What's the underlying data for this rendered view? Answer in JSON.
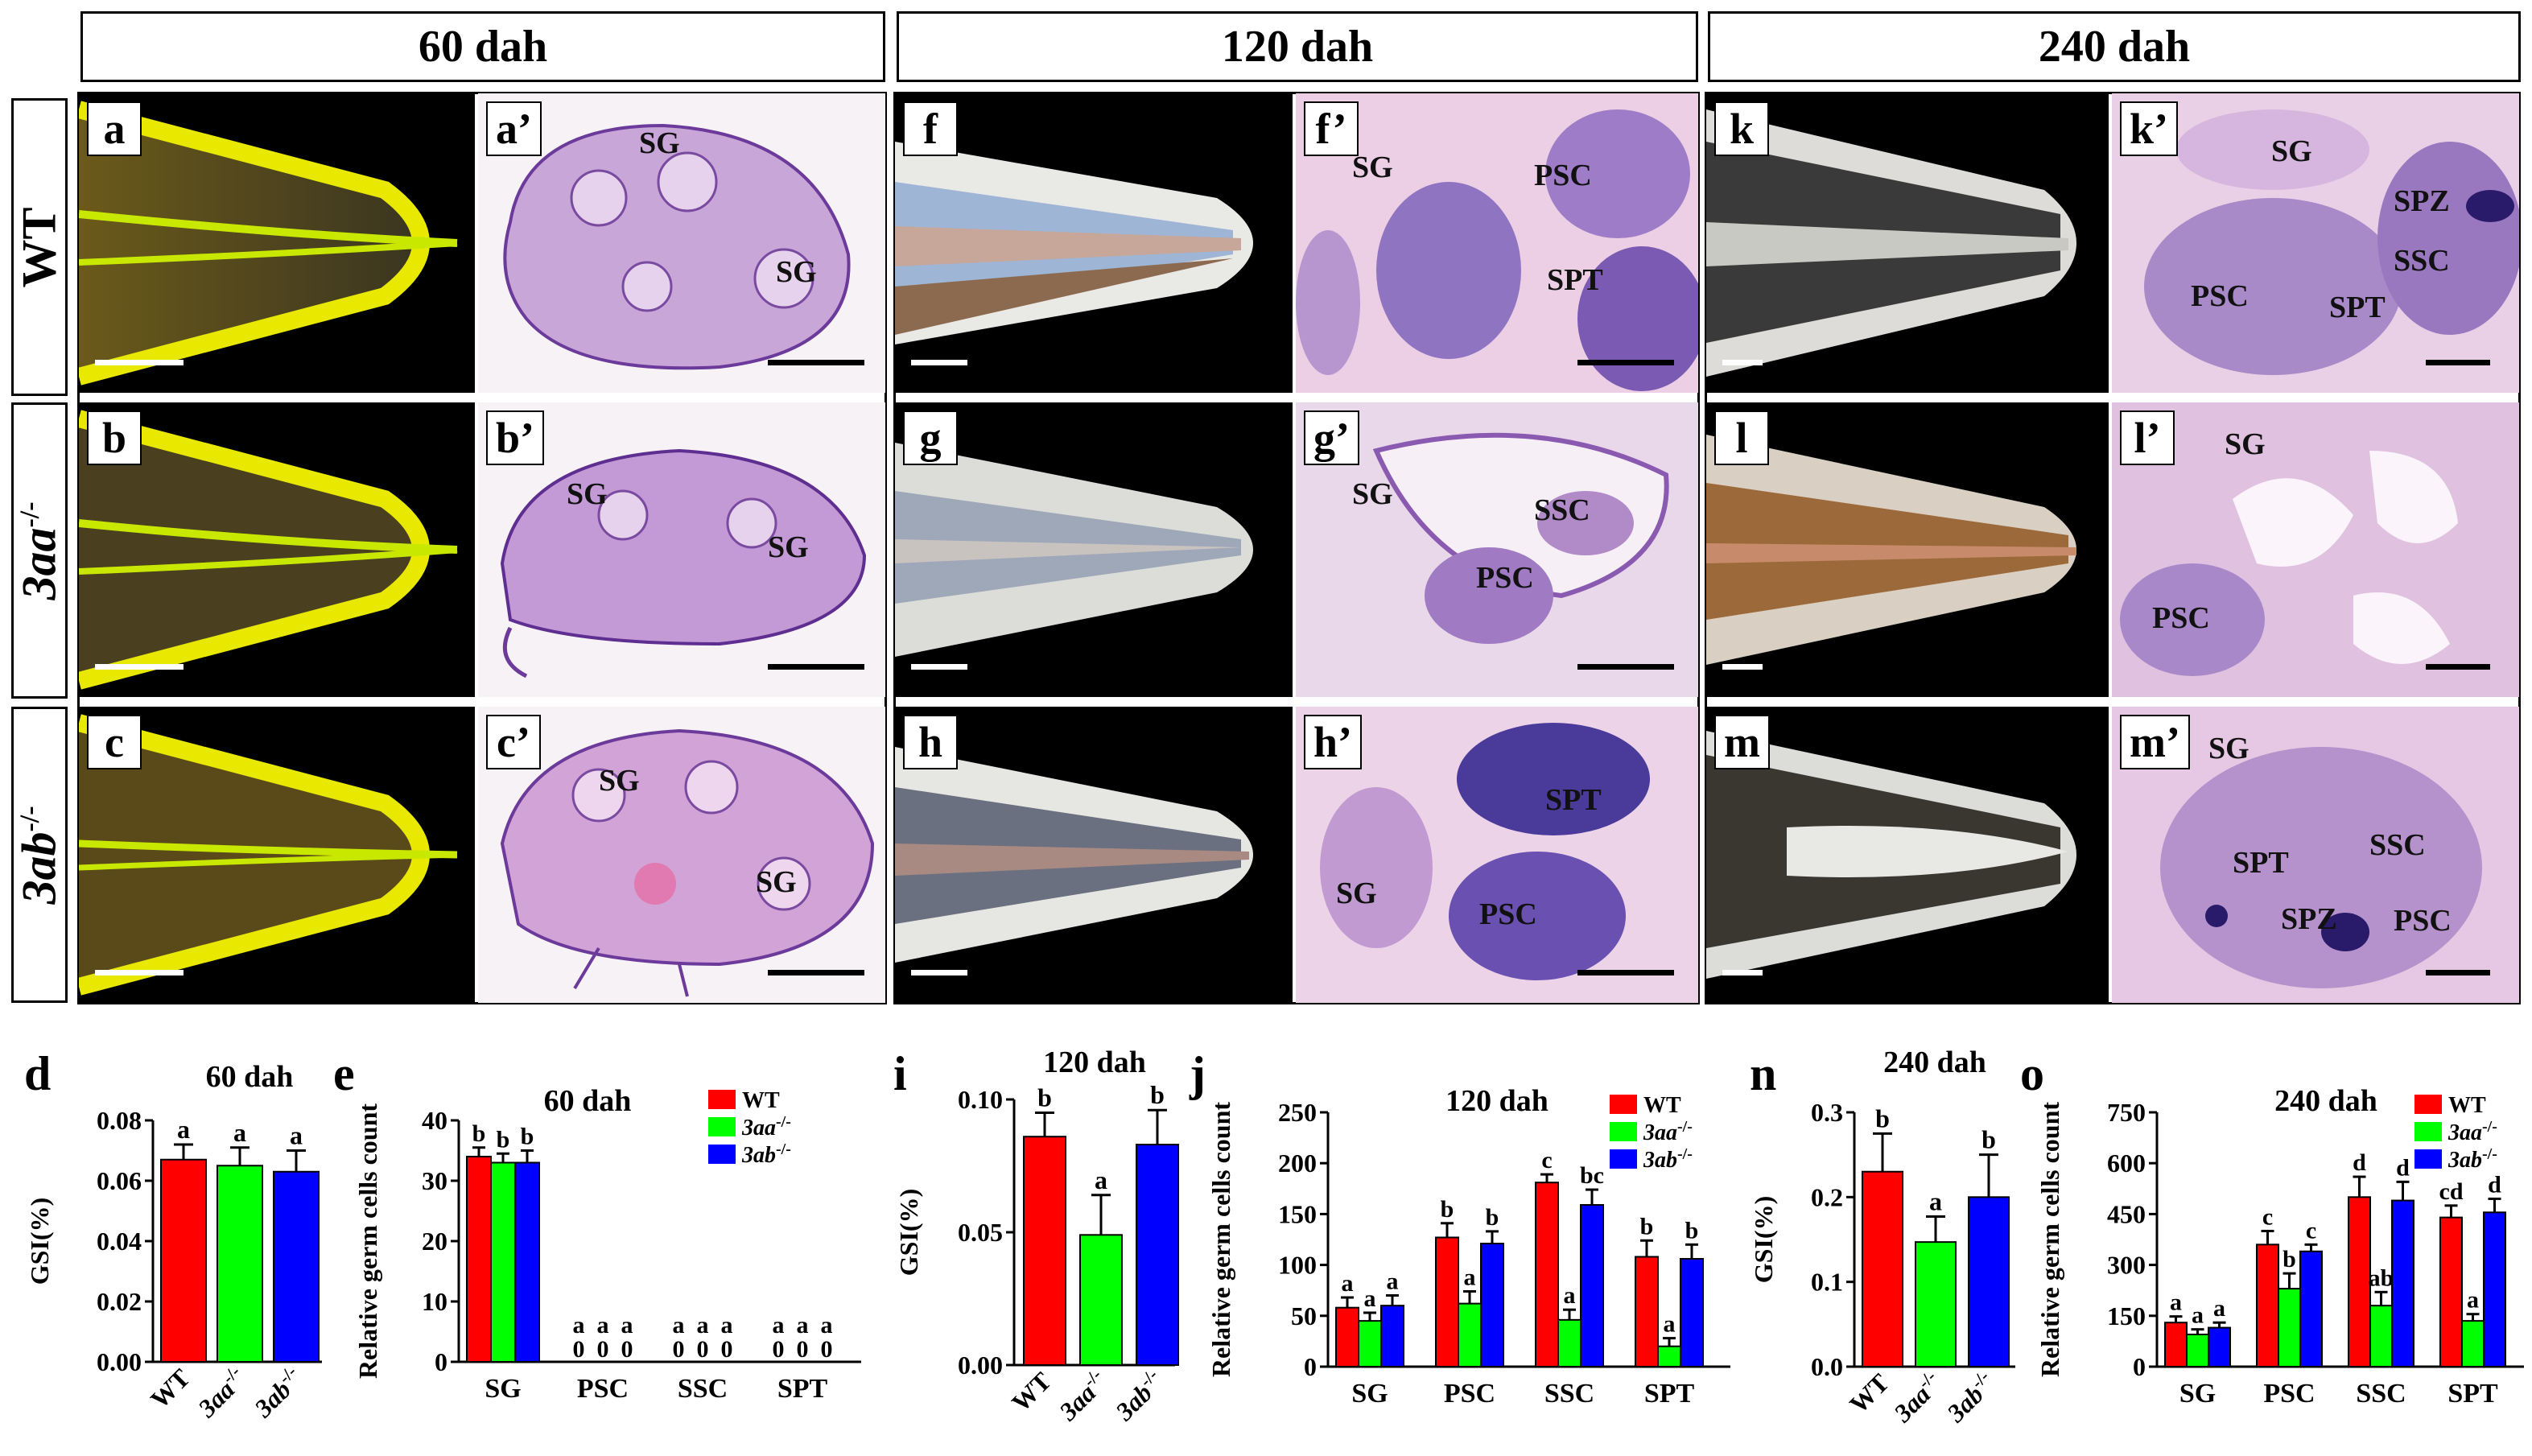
{
  "headers": [
    "60 dah",
    "120 dah",
    "240 dah"
  ],
  "row_labels": [
    {
      "label": "WT",
      "italic": false,
      "sup": ""
    },
    {
      "label": "3aa",
      "italic": true,
      "sup": "-/-"
    },
    {
      "label": "3ab",
      "italic": true,
      "sup": "-/-"
    }
  ],
  "panels": {
    "a": "a",
    "a2": "a’",
    "b": "b",
    "b2": "b’",
    "c": "c",
    "c2": "c’",
    "f": "f",
    "f2": "f’",
    "g": "g",
    "g2": "g’",
    "h": "h",
    "h2": "h’",
    "k": "k",
    "k2": "k’",
    "l": "l",
    "l2": "l’",
    "m": "m",
    "m2": "m’"
  },
  "cell_labels": {
    "a2": [
      "SG",
      "SG"
    ],
    "b2": [
      "SG",
      "SG"
    ],
    "c2": [
      "SG",
      "SG"
    ],
    "f2": [
      "SG",
      "PSC",
      "SPT"
    ],
    "g2": [
      "SG",
      "SSC",
      "PSC"
    ],
    "h2": [
      "SPT",
      "SG",
      "PSC"
    ],
    "k2": [
      "SG",
      "SPZ",
      "SSC",
      "PSC",
      "SPT"
    ],
    "l2": [
      "SG",
      "PSC"
    ],
    "m2": [
      "SG",
      "SSC",
      "SPT",
      "SPZ",
      "PSC"
    ]
  },
  "colors": {
    "wt": "#ff0000",
    "aa": "#00ff00",
    "ab": "#0000ff",
    "gonad_yellow": "#e8e800"
  },
  "chart_data": [
    {
      "id": "d",
      "label": "d",
      "type": "bar",
      "title": "60 dah",
      "ylabel": "GSI(%)",
      "ylim": [
        0,
        0.08
      ],
      "yticks": [
        "0.00",
        "0.02",
        "0.04",
        "0.06",
        "0.08"
      ],
      "categories": [
        "WT",
        "3aa-/-",
        "3ab-/-"
      ],
      "values": [
        0.067,
        0.065,
        0.063
      ],
      "errors": [
        0.005,
        0.006,
        0.007
      ],
      "letters": [
        "a",
        "a",
        "a"
      ]
    },
    {
      "id": "e",
      "label": "e",
      "type": "bar",
      "title": "60 dah",
      "ylabel": "Relative germ cells count",
      "ylim": [
        0,
        40
      ],
      "yticks": [
        "0",
        "10",
        "20",
        "30",
        "40"
      ],
      "categories": [
        "SG",
        "PSC",
        "SSC",
        "SPT"
      ],
      "series": [
        {
          "name": "WT",
          "values": [
            34,
            0,
            0,
            0
          ],
          "errors": [
            1.5,
            0,
            0,
            0
          ],
          "letters": [
            "b",
            "a",
            "a",
            "a"
          ]
        },
        {
          "name": "3aa-/-",
          "values": [
            33,
            0,
            0,
            0
          ],
          "errors": [
            1.5,
            0,
            0,
            0
          ],
          "letters": [
            "b",
            "a",
            "a",
            "a"
          ]
        },
        {
          "name": "3ab-/-",
          "values": [
            33,
            0,
            0,
            0
          ],
          "errors": [
            2,
            0,
            0,
            0
          ],
          "letters": [
            "b",
            "a",
            "a",
            "a"
          ]
        }
      ],
      "zero_labels": [
        "0",
        "0",
        "0"
      ],
      "legend": [
        "WT",
        "3aa-/-",
        "3ab-/-"
      ]
    },
    {
      "id": "i",
      "label": "i",
      "type": "bar",
      "title": "120 dah",
      "ylabel": "GSI(%)",
      "ylim": [
        0,
        0.1
      ],
      "yticks": [
        "0.00",
        "0.05",
        "0.10"
      ],
      "categories": [
        "WT",
        "3aa-/-",
        "3ab-/-"
      ],
      "values": [
        0.086,
        0.049,
        0.083
      ],
      "errors": [
        0.009,
        0.015,
        0.013
      ],
      "letters": [
        "b",
        "a",
        "b"
      ]
    },
    {
      "id": "j",
      "label": "j",
      "type": "bar",
      "title": "120 dah",
      "ylabel": "Relative germ cells count",
      "ylim": [
        0,
        250
      ],
      "yticks": [
        "0",
        "50",
        "100",
        "150",
        "200",
        "250"
      ],
      "categories": [
        "SG",
        "PSC",
        "SSC",
        "SPT"
      ],
      "series": [
        {
          "name": "WT",
          "values": [
            58,
            127,
            181,
            108
          ],
          "errors": [
            10,
            14,
            8,
            16
          ],
          "letters": [
            "a",
            "b",
            "c",
            "b"
          ]
        },
        {
          "name": "3aa-/-",
          "values": [
            45,
            62,
            46,
            20
          ],
          "errors": [
            8,
            12,
            10,
            8
          ],
          "letters": [
            "a",
            "a",
            "a",
            "a"
          ]
        },
        {
          "name": "3ab-/-",
          "values": [
            60,
            121,
            159,
            106
          ],
          "errors": [
            10,
            12,
            15,
            14
          ],
          "letters": [
            "a",
            "b",
            "bc",
            "b"
          ]
        }
      ],
      "legend": [
        "WT",
        "3aa-/-",
        "3ab-/-"
      ]
    },
    {
      "id": "n",
      "label": "n",
      "type": "bar",
      "title": "240 dah",
      "ylabel": "GSI(%)",
      "ylim": [
        0,
        0.3
      ],
      "yticks": [
        "0.0",
        "0.1",
        "0.2",
        "0.3"
      ],
      "categories": [
        "WT",
        "3aa-/-",
        "3ab-/-"
      ],
      "values": [
        0.23,
        0.147,
        0.2
      ],
      "errors": [
        0.045,
        0.03,
        0.05
      ],
      "letters": [
        "b",
        "a",
        "b"
      ]
    },
    {
      "id": "o",
      "label": "o",
      "type": "bar",
      "title": "240 dah",
      "ylabel": "Relative germ cells count",
      "ylim": [
        0,
        750
      ],
      "yticks": [
        "0",
        "150",
        "300",
        "450",
        "600",
        "750"
      ],
      "categories": [
        "SG",
        "PSC",
        "SSC",
        "SPT"
      ],
      "series": [
        {
          "name": "WT",
          "values": [
            130,
            360,
            500,
            440
          ],
          "errors": [
            18,
            40,
            60,
            35
          ],
          "letters": [
            "a",
            "c",
            "d",
            "cd"
          ]
        },
        {
          "name": "3aa-/-",
          "values": [
            95,
            230,
            180,
            135
          ],
          "errors": [
            15,
            45,
            40,
            20
          ],
          "letters": [
            "a",
            "b",
            "ab",
            "a"
          ]
        },
        {
          "name": "3ab-/-",
          "values": [
            115,
            340,
            490,
            455
          ],
          "errors": [
            15,
            20,
            55,
            40
          ],
          "letters": [
            "a",
            "c",
            "d",
            "d"
          ]
        }
      ],
      "legend": [
        "WT",
        "3aa-/-",
        "3ab-/-"
      ]
    }
  ]
}
